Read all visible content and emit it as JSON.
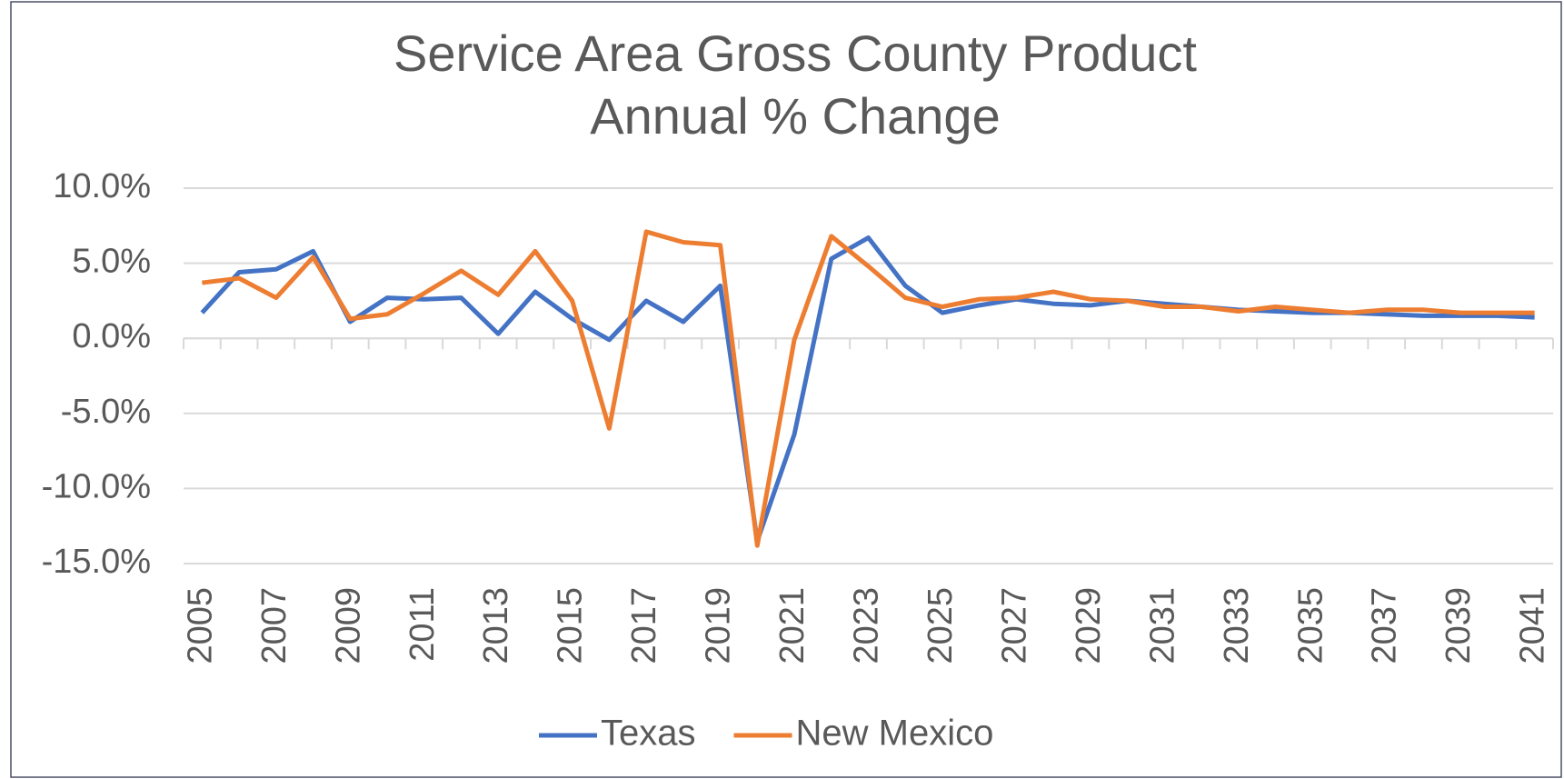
{
  "chart_data": {
    "type": "line",
    "title": [
      "Service Area Gross County Product",
      "Annual % Change"
    ],
    "categories": [
      "2005",
      null,
      "2007",
      null,
      "2009",
      null,
      "2011",
      null,
      "2013",
      null,
      "2015",
      null,
      "2017",
      null,
      "2019",
      null,
      "2021",
      null,
      "2023",
      null,
      "2025",
      null,
      "2027",
      null,
      "2029",
      null,
      "2031",
      null,
      "2033",
      null,
      "2035",
      null,
      "2037",
      null,
      "2039",
      null,
      "2041"
    ],
    "series": [
      {
        "name": "Texas",
        "color": "#4472c4",
        "values": [
          1.7,
          4.4,
          4.6,
          5.8,
          1.1,
          2.7,
          2.6,
          2.7,
          0.3,
          3.1,
          1.3,
          -0.1,
          2.5,
          1.1,
          3.5,
          -13.5,
          -6.4,
          5.3,
          6.7,
          3.5,
          1.7,
          2.2,
          2.6,
          2.3,
          2.2,
          2.5,
          2.3,
          2.1,
          1.9,
          1.8,
          1.7,
          1.7,
          1.6,
          1.5,
          1.5,
          1.5,
          1.4
        ]
      },
      {
        "name": "New Mexico",
        "color": "#ed7d31",
        "values": [
          3.7,
          4.0,
          2.7,
          5.4,
          1.3,
          1.6,
          3.0,
          4.5,
          2.9,
          5.8,
          2.5,
          -6.0,
          7.1,
          6.4,
          6.2,
          -13.8,
          -0.1,
          6.8,
          4.8,
          2.7,
          2.1,
          2.6,
          2.7,
          3.1,
          2.6,
          2.5,
          2.1,
          2.1,
          1.8,
          2.1,
          1.9,
          1.7,
          1.9,
          1.9,
          1.7,
          1.7,
          1.7
        ]
      }
    ],
    "ylim": [
      -15,
      10
    ],
    "yticks": [
      {
        "value": 10,
        "label": "10.0%"
      },
      {
        "value": 5,
        "label": "5.0%"
      },
      {
        "value": 0,
        "label": "0.0%"
      },
      {
        "value": -5,
        "label": "-5.0%"
      },
      {
        "value": -10,
        "label": "-10.0%"
      },
      {
        "value": -15,
        "label": "-15.0%"
      }
    ],
    "grid": true,
    "legend": "bottom"
  }
}
